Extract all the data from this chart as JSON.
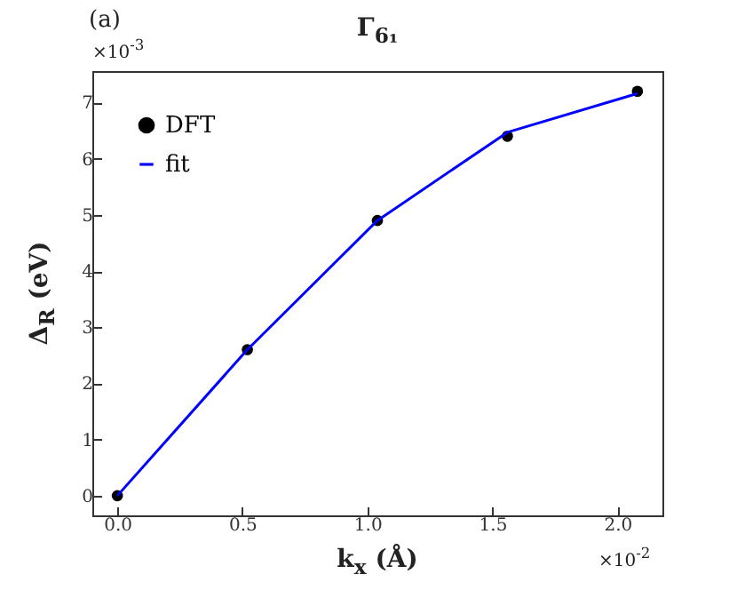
{
  "chart_data": {
    "type": "scatter",
    "title": "Γ$_{6₁}$",
    "xlabel": "k$_{x}$ (Å)",
    "ylabel": "Δ$_{R}$ (eV)",
    "annotations": [
      "(a)",
      "×10$^{-3}$",
      "×10$^{-2}$"
    ],
    "series": [
      {
        "name": "DFT",
        "color": "#000000",
        "marker": "circle",
        "x": [
          0,
          0.52,
          1.04,
          1.56,
          2.08
        ],
        "values": [
          0,
          2.6,
          4.9,
          6.4,
          7.2
        ]
      },
      {
        "name": "fit",
        "type": "line",
        "color": "#0000ff",
        "line_style": "solid",
        "x": [
          0,
          0.52,
          1.04,
          1.56,
          2.08
        ],
        "values": [
          0,
          2.6,
          4.9,
          6.47,
          7.16
        ]
      }
    ],
    "xlim": [
      -0.1,
      2.18
    ],
    "xticks": [
      {
        "value": 0,
        "label": "0.0"
      },
      {
        "value": 0.5,
        "label": "0.5"
      },
      {
        "value": 1,
        "label": "1.0"
      },
      {
        "value": 1.5,
        "label": "1.5"
      },
      {
        "value": 2,
        "label": "2.0"
      }
    ],
    "ylim": [
      -0.35,
      7.56
    ],
    "yticks": [
      0,
      1,
      2,
      3,
      4,
      5,
      6,
      7
    ],
    "grid": false,
    "legend": "top left"
  }
}
